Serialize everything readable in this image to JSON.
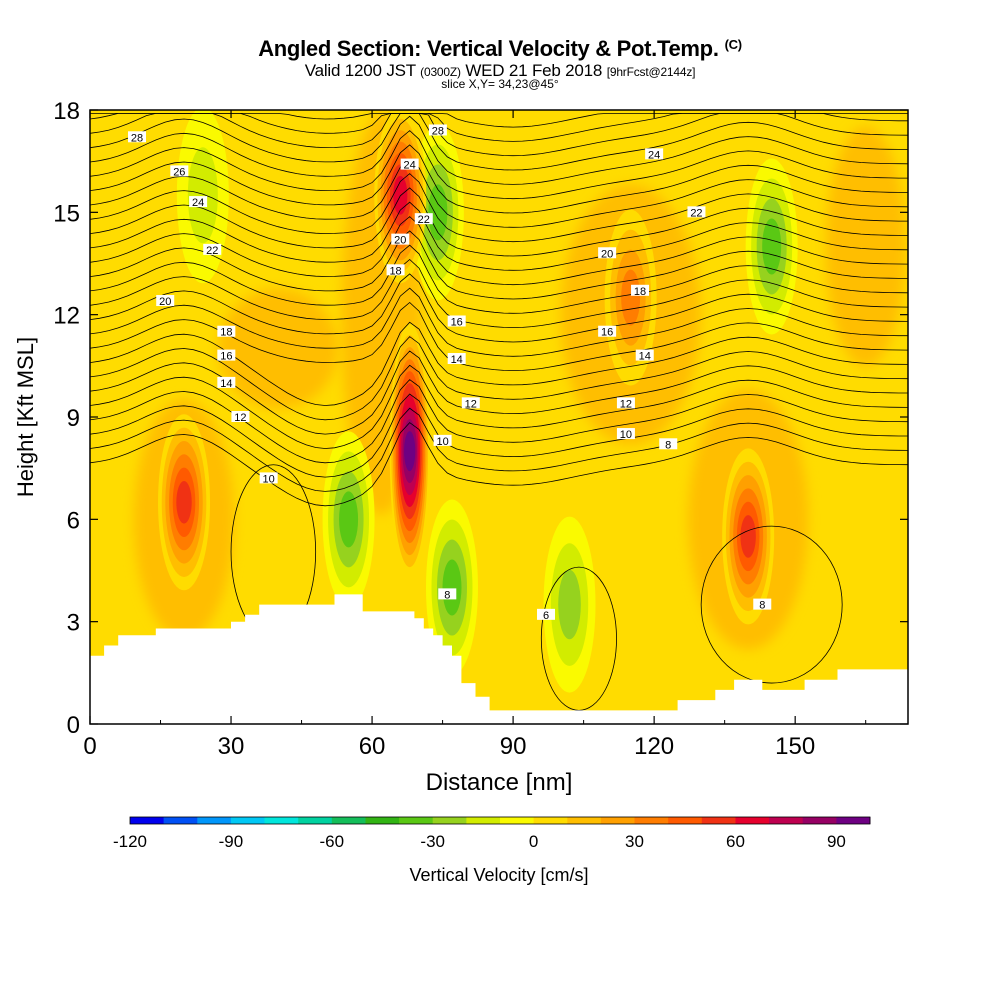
{
  "header": {
    "title": "Angled Section: Vertical Velocity & Pot.Temp.",
    "title_units": "(C)",
    "valid_prefix": "Valid 1200 JST",
    "valid_utc": "(0300Z)",
    "valid_date": "WED 21 Feb 2018",
    "forecast": "[9hrFcst@2144z]",
    "slice": "slice X,Y= 34,23@45°"
  },
  "chart_data": {
    "type": "heatmap",
    "xlabel": "Distance [nm]",
    "ylabel": "Height [Kft MSL]",
    "xlim": [
      0,
      174
    ],
    "ylim": [
      0,
      18
    ],
    "x_ticks": [
      0,
      30,
      60,
      90,
      120,
      150
    ],
    "y_ticks": [
      0,
      3,
      6,
      9,
      12,
      15,
      18
    ],
    "x_tick_labels": [
      "0",
      "30",
      "60",
      "90",
      "120",
      "150"
    ],
    "y_tick_labels": [
      "0",
      "3",
      "6",
      "9",
      "12",
      "15",
      "18"
    ],
    "colorbar": {
      "label": "Vertical Velocity [cm/s]",
      "range": [
        -120,
        100
      ],
      "step": 10,
      "tick_values": [
        -120,
        -90,
        -60,
        -30,
        0,
        30,
        60,
        90
      ],
      "tick_labels": [
        "-120",
        "-90",
        "-60",
        "-30",
        "0",
        "30",
        "60",
        "90"
      ],
      "colors": [
        "#0000ee",
        "#0050f5",
        "#0096fa",
        "#00c8f5",
        "#00e6dc",
        "#00d2a0",
        "#14be5a",
        "#32b414",
        "#5ac814",
        "#96d21e",
        "#d2ec00",
        "#fafa00",
        "#ffdc00",
        "#ffbe00",
        "#ffa000",
        "#ff7d00",
        "#ff5a00",
        "#f03214",
        "#e6002d",
        "#be0050",
        "#960064",
        "#6e0082"
      ]
    },
    "updraft_cores": [
      {
        "x": 20,
        "y": 6.5,
        "peak": 55
      },
      {
        "x": 68,
        "y": 8.0,
        "peak": 95
      },
      {
        "x": 66,
        "y": 15.5,
        "peak": 70
      },
      {
        "x": 140,
        "y": 5.5,
        "peak": 60
      },
      {
        "x": 115,
        "y": 12.5,
        "peak": 35
      }
    ],
    "downdraft_cores": [
      {
        "x": 55,
        "y": 6.0,
        "peak": -40
      },
      {
        "x": 74,
        "y": 15.0,
        "peak": -35
      },
      {
        "x": 77,
        "y": 4.0,
        "peak": -40
      },
      {
        "x": 102,
        "y": 3.5,
        "peak": -25
      },
      {
        "x": 145,
        "y": 14.0,
        "peak": -35
      },
      {
        "x": 24,
        "y": 15.5,
        "peak": -20
      }
    ],
    "isentrope_labels": [
      {
        "value": "28",
        "x": 10,
        "y": 17.2
      },
      {
        "value": "26",
        "x": 19,
        "y": 16.2
      },
      {
        "value": "24",
        "x": 23,
        "y": 15.3
      },
      {
        "value": "22",
        "x": 26,
        "y": 13.9
      },
      {
        "value": "20",
        "x": 16,
        "y": 12.4
      },
      {
        "value": "18",
        "x": 29,
        "y": 11.5
      },
      {
        "value": "16",
        "x": 29,
        "y": 10.8
      },
      {
        "value": "14",
        "x": 29,
        "y": 10.0
      },
      {
        "value": "12",
        "x": 32,
        "y": 9.0
      },
      {
        "value": "10",
        "x": 38,
        "y": 7.2
      },
      {
        "value": "28",
        "x": 74,
        "y": 17.4
      },
      {
        "value": "24",
        "x": 68,
        "y": 16.4
      },
      {
        "value": "22",
        "x": 71,
        "y": 14.8
      },
      {
        "value": "20",
        "x": 66,
        "y": 14.2
      },
      {
        "value": "18",
        "x": 65,
        "y": 13.3
      },
      {
        "value": "16",
        "x": 78,
        "y": 11.8
      },
      {
        "value": "14",
        "x": 78,
        "y": 10.7
      },
      {
        "value": "12",
        "x": 81,
        "y": 9.4
      },
      {
        "value": "10",
        "x": 75,
        "y": 8.3
      },
      {
        "value": "8",
        "x": 76,
        "y": 3.8
      },
      {
        "value": "6",
        "x": 97,
        "y": 3.2
      },
      {
        "value": "24",
        "x": 120,
        "y": 16.7
      },
      {
        "value": "22",
        "x": 129,
        "y": 15.0
      },
      {
        "value": "20",
        "x": 110,
        "y": 13.8
      },
      {
        "value": "18",
        "x": 117,
        "y": 12.7
      },
      {
        "value": "16",
        "x": 110,
        "y": 11.5
      },
      {
        "value": "14",
        "x": 118,
        "y": 10.8
      },
      {
        "value": "12",
        "x": 114,
        "y": 9.4
      },
      {
        "value": "10",
        "x": 114,
        "y": 8.5
      },
      {
        "value": "8",
        "x": 123,
        "y": 8.2
      },
      {
        "value": "8",
        "x": 143,
        "y": 3.5
      }
    ],
    "terrain_height": [
      [
        0,
        2.0
      ],
      [
        3,
        2.0
      ],
      [
        3,
        2.3
      ],
      [
        6,
        2.3
      ],
      [
        6,
        2.6
      ],
      [
        14,
        2.6
      ],
      [
        14,
        2.8
      ],
      [
        30,
        2.8
      ],
      [
        30,
        3.0
      ],
      [
        33,
        3.0
      ],
      [
        33,
        3.2
      ],
      [
        36,
        3.2
      ],
      [
        36,
        3.5
      ],
      [
        52,
        3.5
      ],
      [
        52,
        3.8
      ],
      [
        58,
        3.8
      ],
      [
        58,
        3.3
      ],
      [
        69,
        3.3
      ],
      [
        69,
        3.1
      ],
      [
        71,
        3.1
      ],
      [
        71,
        2.8
      ],
      [
        73,
        2.8
      ],
      [
        73,
        2.6
      ],
      [
        75,
        2.6
      ],
      [
        75,
        2.3
      ],
      [
        77,
        2.3
      ],
      [
        77,
        2.0
      ],
      [
        79,
        2.0
      ],
      [
        79,
        1.2
      ],
      [
        82,
        1.2
      ],
      [
        82,
        0.8
      ],
      [
        85,
        0.8
      ],
      [
        85,
        0.4
      ],
      [
        125,
        0.4
      ],
      [
        125,
        0.7
      ],
      [
        133,
        0.7
      ],
      [
        133,
        1.0
      ],
      [
        137,
        1.0
      ],
      [
        137,
        1.3
      ],
      [
        143,
        1.3
      ],
      [
        143,
        1.0
      ],
      [
        152,
        1.0
      ],
      [
        152,
        1.3
      ],
      [
        159,
        1.3
      ],
      [
        159,
        1.6
      ],
      [
        174,
        1.6
      ]
    ]
  }
}
